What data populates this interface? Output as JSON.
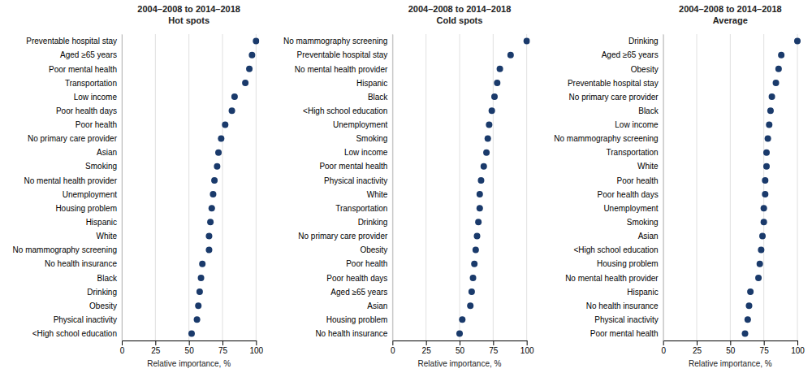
{
  "chart_data": [
    {
      "type": "dot",
      "title": "2004–2008 to 2014–2018\nHot spots",
      "categories": [
        "Preventable hospital stay",
        "Aged ≥65 years",
        "Poor mental health",
        "Transportation",
        "Low income",
        "Poor health days",
        "Poor health",
        "No primary care provider",
        "Asian",
        "Smoking",
        "No mental health provider",
        "Unemployment",
        "Housing problem",
        "Hispanic",
        "White",
        "No mammography screening",
        "No health insurance",
        "Black",
        "Drinking",
        "Obesity",
        "Physical inactivity",
        "<High school education"
      ],
      "values": [
        100,
        97,
        95,
        92,
        84,
        82,
        77,
        74,
        72,
        71,
        69,
        68,
        67,
        66,
        65,
        65,
        60,
        59,
        58,
        57,
        56,
        52
      ],
      "color": "#1a3a6b",
      "xlabel": "Relative importance, %",
      "xlim": [
        0,
        100
      ],
      "xticks": [
        0,
        25,
        50,
        75,
        100
      ],
      "grid": true
    },
    {
      "type": "dot",
      "title": "2004–2008 to 2014–2018\nCold spots",
      "categories": [
        "No mammography screening",
        "Preventable hospital stay",
        "No mental health provider",
        "Hispanic",
        "Black",
        "<High school education",
        "Unemployment",
        "Smoking",
        "Low income",
        "Poor mental health",
        "Physical inactivity",
        "White",
        "Transportation",
        "Drinking",
        "No primary care provider",
        "Obesity",
        "Poor health",
        "Poor health days",
        "Aged ≥65 years",
        "Asian",
        "Housing problem",
        "No health insurance"
      ],
      "values": [
        100,
        88,
        80,
        78,
        76,
        74,
        72,
        71,
        70,
        68,
        66,
        65,
        65,
        64,
        63,
        62,
        61,
        60,
        59,
        58,
        52,
        50
      ],
      "color": "#1a3a6b",
      "xlabel": "Relative importance, %",
      "xlim": [
        0,
        100
      ],
      "xticks": [
        0,
        25,
        50,
        75,
        100
      ],
      "grid": true
    },
    {
      "type": "dot",
      "title": "2004–2008 to 2014–2018\nAverage",
      "categories": [
        "Drinking",
        "Aged ≥65 years",
        "Obesity",
        "Preventable hospital stay",
        "No primary care provider",
        "Black",
        "Low income",
        "No mammography screening",
        "Transportation",
        "White",
        "Poor health",
        "Poor health days",
        "Unemployment",
        "Smoking",
        "Asian",
        "<High school education",
        "Housing problem",
        "No mental health provider",
        "Hispanic",
        "No health insurance",
        "Physical inactivity",
        "Poor mental health"
      ],
      "values": [
        100,
        88,
        86,
        84,
        81,
        80,
        79,
        78,
        77,
        77,
        76,
        76,
        75,
        75,
        74,
        73,
        72,
        71,
        65,
        64,
        63,
        61
      ],
      "color": "#1a3a6b",
      "xlabel": "Relative importance, %",
      "xlim": [
        0,
        100
      ],
      "xticks": [
        0,
        25,
        50,
        75,
        100
      ],
      "grid": true
    }
  ]
}
